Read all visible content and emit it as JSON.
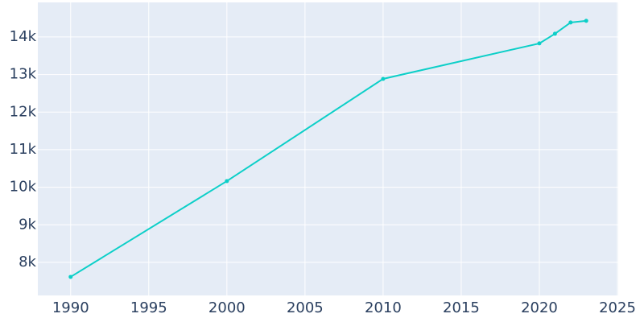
{
  "chart_data": {
    "type": "line",
    "x": [
      1990,
      2000,
      2010,
      2020,
      2021,
      2022,
      2023
    ],
    "series": [
      {
        "color": "#0ccfc8",
        "values": [
          7614,
          10164,
          12885,
          13829,
          14086,
          14386,
          14429
        ]
      }
    ],
    "xlim": [
      1987.9,
      2025.05
    ],
    "ylim": [
      7120,
      14920
    ],
    "xticks": [
      1990,
      1995,
      2000,
      2005,
      2010,
      2015,
      2020,
      2025
    ],
    "yticks": [
      {
        "value": 8000,
        "label": "8k"
      },
      {
        "value": 9000,
        "label": "9k"
      },
      {
        "value": 10000,
        "label": "10k"
      },
      {
        "value": 11000,
        "label": "11k"
      },
      {
        "value": 12000,
        "label": "12k"
      },
      {
        "value": 13000,
        "label": "13k"
      },
      {
        "value": 14000,
        "label": "14k"
      }
    ],
    "grid": true,
    "plot_background": "#e5ecf6"
  }
}
